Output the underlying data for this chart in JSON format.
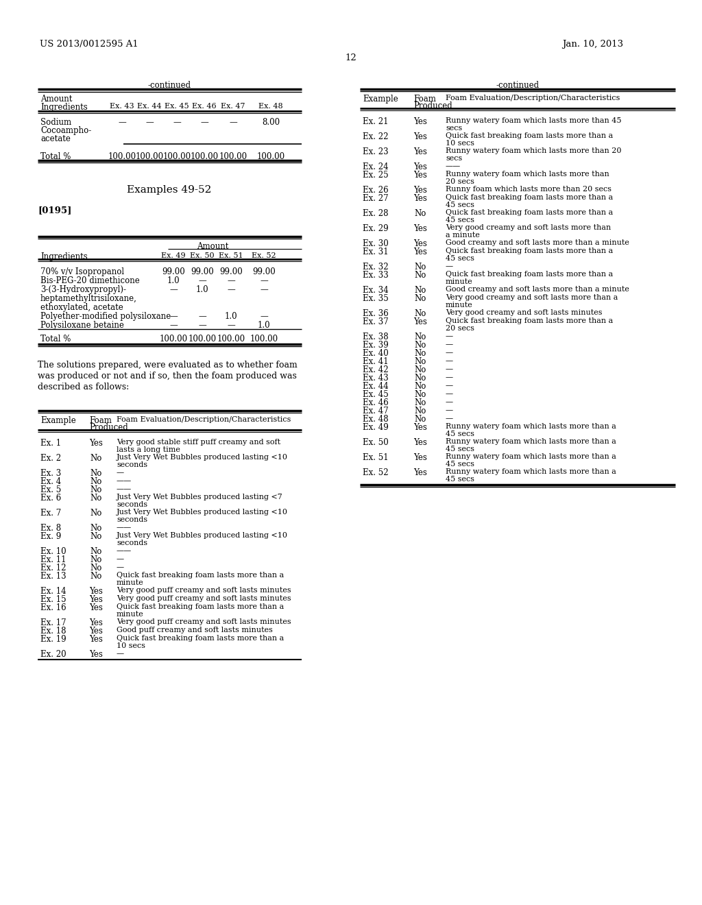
{
  "page_header_left": "US 2013/0012595 A1",
  "page_header_right": "Jan. 10, 2013",
  "page_number": "12",
  "bg_color": "#ffffff",
  "text_color": "#000000",
  "table1_title": "-continued",
  "table2_title": "-continued",
  "t1_ex_labels": [
    "Ex. 43",
    "Ex. 44",
    "Ex. 45",
    "Ex. 46",
    "Ex. 47",
    "Ex. 48"
  ],
  "t1_sodium_vals": [
    "—",
    "—",
    "—",
    "—",
    "—",
    "8.00"
  ],
  "t1_total_vals": [
    "100.00",
    "100.00",
    "100.00",
    "100.00",
    "100.00",
    "100.00"
  ],
  "section_title": "Examples 49-52",
  "paragraph_ref": "[0195]",
  "t2_ex_labels": [
    "Ex. 49",
    "Ex. 50",
    "Ex. 51",
    "Ex. 52"
  ],
  "t2_rows": [
    [
      "70% v/v Isopropanol",
      "99.00",
      "99.00",
      "99.00",
      "99.00"
    ],
    [
      "Bis-PEG-20 dimethicone",
      "1.0",
      "—",
      "—",
      "—"
    ],
    [
      "3-(3-Hydroxypropyl)-",
      "—",
      "1.0",
      "—",
      "—"
    ],
    [
      "heptamethyltrisiloxane,",
      "",
      "",
      "",
      ""
    ],
    [
      "ethoxylated, acetate",
      "",
      "",
      "",
      ""
    ],
    [
      "Polyether-modified polysiloxane",
      "—",
      "—",
      "1.0",
      "—"
    ],
    [
      "Polysiloxane betaine",
      "—",
      "—",
      "—",
      "1.0"
    ],
    [
      "Total %",
      "100.00",
      "100.00",
      "100.00",
      "100.00"
    ]
  ],
  "body_text_lines": [
    "The solutions prepared, were evaluated as to whether foam",
    "was produced or not and if so, then the foam produced was",
    "described as follows:"
  ],
  "t3_rows": [
    [
      "Ex. 1",
      "Yes",
      "Very good stable stiff puff creamy and soft",
      "lasts a long time"
    ],
    [
      "Ex. 2",
      "No",
      "Just Very Wet Bubbles produced lasting <10",
      "seconds"
    ],
    [
      "Ex. 3",
      "No",
      "—",
      ""
    ],
    [
      "Ex. 4",
      "No",
      "——",
      ""
    ],
    [
      "Ex. 5",
      "No",
      "——",
      ""
    ],
    [
      "Ex. 6",
      "No",
      "Just Very Wet Bubbles produced lasting <7",
      "seconds"
    ],
    [
      "Ex. 7",
      "No",
      "Just Very Wet Bubbles produced lasting <10",
      "seconds"
    ],
    [
      "Ex. 8",
      "No",
      "——",
      ""
    ],
    [
      "Ex. 9",
      "No",
      "Just Very Wet Bubbles produced lasting <10",
      "seconds"
    ],
    [
      "Ex. 10",
      "No",
      "——",
      ""
    ],
    [
      "Ex. 11",
      "No",
      "—",
      ""
    ],
    [
      "Ex. 12",
      "No",
      "—",
      ""
    ],
    [
      "Ex. 13",
      "No",
      "Quick fast breaking foam lasts more than a",
      "minute"
    ],
    [
      "Ex. 14",
      "Yes",
      "Very good puff creamy and soft lasts minutes",
      ""
    ],
    [
      "Ex. 15",
      "Yes",
      "Very good puff creamy and soft lasts minutes",
      ""
    ],
    [
      "Ex. 16",
      "Yes",
      "Quick fast breaking foam lasts more than a",
      "minute"
    ],
    [
      "Ex. 17",
      "Yes",
      "Very good puff creamy and soft lasts minutes",
      ""
    ],
    [
      "Ex. 18",
      "Yes",
      "Good puff creamy and soft lasts minutes",
      ""
    ],
    [
      "Ex. 19",
      "Yes",
      "Quick fast breaking foam lasts more than a",
      "10 secs"
    ],
    [
      "Ex. 20",
      "Yes",
      "—",
      ""
    ]
  ],
  "t4_rows": [
    [
      "Ex. 21",
      "Yes",
      "Runny watery foam which lasts more than 45",
      "secs"
    ],
    [
      "Ex. 22",
      "Yes",
      "Quick fast breaking foam lasts more than a",
      "10 secs"
    ],
    [
      "Ex. 23",
      "Yes",
      "Runny watery foam which lasts more than 20",
      "secs"
    ],
    [
      "Ex. 24",
      "Yes",
      "——",
      ""
    ],
    [
      "Ex. 25",
      "Yes",
      "Runny watery foam which lasts more than",
      "20 secs"
    ],
    [
      "Ex. 26",
      "Yes",
      "Runny foam which lasts more than 20 secs",
      ""
    ],
    [
      "Ex. 27",
      "Yes",
      "Quick fast breaking foam lasts more than a",
      "45 secs"
    ],
    [
      "Ex. 28",
      "No",
      "Quick fast breaking foam lasts more than a",
      "45 secs"
    ],
    [
      "Ex. 29",
      "Yes",
      "Very good creamy and soft lasts more than",
      "a minute"
    ],
    [
      "Ex. 30",
      "Yes",
      "Good creamy and soft lasts more than a minute",
      ""
    ],
    [
      "Ex. 31",
      "Yes",
      "Quick fast breaking foam lasts more than a",
      "45 secs"
    ],
    [
      "Ex. 32",
      "No",
      "—",
      ""
    ],
    [
      "Ex. 33",
      "No",
      "Quick fast breaking foam lasts more than a",
      "minute"
    ],
    [
      "Ex. 34",
      "No",
      "Good creamy and soft lasts more than a minute",
      ""
    ],
    [
      "Ex. 35",
      "No",
      "Very good creamy and soft lasts more than a",
      "minute"
    ],
    [
      "Ex. 36",
      "No",
      "Very good creamy and soft lasts minutes",
      ""
    ],
    [
      "Ex. 37",
      "Yes",
      "Quick fast breaking foam lasts more than a",
      "20 secs"
    ],
    [
      "Ex. 38",
      "No",
      "—",
      ""
    ],
    [
      "Ex. 39",
      "No",
      "—",
      ""
    ],
    [
      "Ex. 40",
      "No",
      "—",
      ""
    ],
    [
      "Ex. 41",
      "No",
      "—",
      ""
    ],
    [
      "Ex. 42",
      "No",
      "—",
      ""
    ],
    [
      "Ex. 43",
      "No",
      "—",
      ""
    ],
    [
      "Ex. 44",
      "No",
      "—",
      ""
    ],
    [
      "Ex. 45",
      "No",
      "—",
      ""
    ],
    [
      "Ex. 46",
      "No",
      "—",
      ""
    ],
    [
      "Ex. 47",
      "No",
      "—",
      ""
    ],
    [
      "Ex. 48",
      "No",
      "—",
      ""
    ],
    [
      "Ex. 49",
      "Yes",
      "Runny watery foam which lasts more than a",
      "45 secs"
    ],
    [
      "Ex. 50",
      "Yes",
      "Runny watery foam which lasts more than a",
      "45 secs"
    ],
    [
      "Ex. 51",
      "Yes",
      "Runny watery foam which lasts more than a",
      "45 secs"
    ],
    [
      "Ex. 52",
      "Yes",
      "Runny watery foam which lasts more than a",
      "45 secs"
    ]
  ]
}
